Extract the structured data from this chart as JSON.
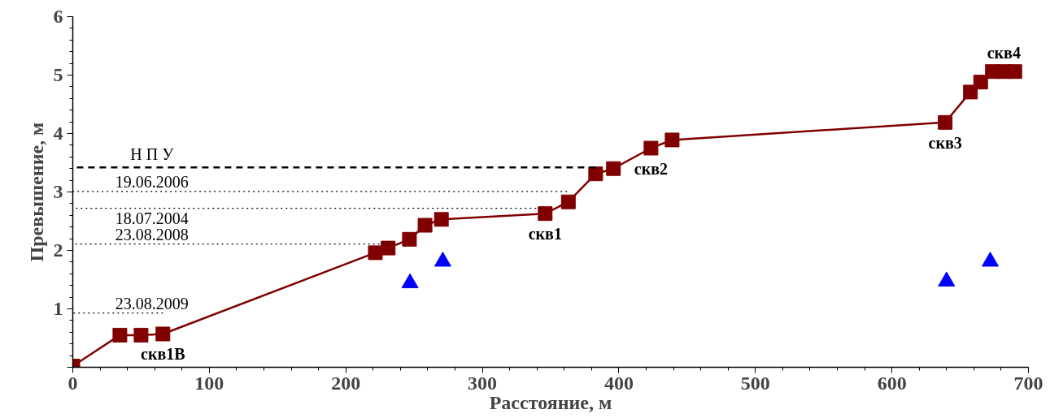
{
  "chart_data": {
    "type": "line",
    "xlabel": "Расстояние, м",
    "ylabel": "Превышение, м",
    "xlim": [
      0,
      700
    ],
    "ylim": [
      0,
      6
    ],
    "xticks": [
      0,
      100,
      200,
      300,
      400,
      500,
      600,
      700
    ],
    "yticks": [
      {
        "value": 0,
        "label": null
      },
      1,
      2,
      3,
      4,
      5,
      6
    ],
    "grid": false,
    "series": [
      {
        "type": "line",
        "marker": "square",
        "line_style": "solid",
        "color": "#800000",
        "x": [
          0,
          34.5,
          50,
          66,
          221.6,
          231,
          246.6,
          258,
          270,
          346,
          363,
          383,
          396,
          423.5,
          439,
          639,
          657.5,
          665,
          673.6,
          682,
          690
        ],
        "values": [
          0.02,
          0.55,
          0.55,
          0.57,
          1.96,
          2.04,
          2.19,
          2.43,
          2.53,
          2.63,
          2.83,
          3.31,
          3.4,
          3.75,
          3.89,
          4.19,
          4.71,
          4.88,
          5.06,
          5.06,
          5.06
        ]
      },
      {
        "type": "scatter",
        "marker": "triangle",
        "color": "#0000ff",
        "x": [
          247,
          271,
          640,
          672
        ],
        "values": [
          1.44,
          1.81,
          1.47,
          1.81
        ]
      },
      {
        "type": "line",
        "marker": "none",
        "line_style": "dashed",
        "color": "#000000",
        "x": [
          0,
          383
        ],
        "values": [
          3.42,
          3.42
        ]
      },
      {
        "type": "line",
        "marker": "none",
        "line_style": "dotted",
        "color": "#000000",
        "x": [
          0,
          362
        ],
        "values": [
          3.01,
          3.01
        ]
      },
      {
        "type": "line",
        "marker": "none",
        "line_style": "dotted",
        "color": "#000000",
        "x": [
          0,
          343
        ],
        "values": [
          2.72,
          2.72
        ]
      },
      {
        "type": "line",
        "marker": "none",
        "line_style": "dotted",
        "color": "#000000",
        "x": [
          0,
          239
        ],
        "values": [
          2.11,
          2.11
        ]
      },
      {
        "type": "line",
        "marker": "none",
        "line_style": "dotted",
        "color": "#000000",
        "x": [
          0,
          66
        ],
        "values": [
          0.93,
          0.93
        ]
      }
    ],
    "annotations": [
      {
        "text": "Н П У",
        "x": 58,
        "y": 3.42
      },
      {
        "text": "19.06.2006",
        "x": 58,
        "y": 3.01
      },
      {
        "text": "18.07.2004",
        "x": 58,
        "y": 2.72
      },
      {
        "text": "23.08.2008",
        "x": 58,
        "y": 2.11
      },
      {
        "text": "23.08.2009",
        "x": 58,
        "y": 0.93
      },
      {
        "text": "скв1В",
        "x": 66,
        "y": 0.57
      },
      {
        "text": "скв1",
        "x": 346,
        "y": 2.63
      },
      {
        "text": "скв2",
        "x": 423.5,
        "y": 3.75
      },
      {
        "text": "скв3",
        "x": 639,
        "y": 4.19
      },
      {
        "text": "скв4",
        "x": 682,
        "y": 5.06
      }
    ]
  }
}
